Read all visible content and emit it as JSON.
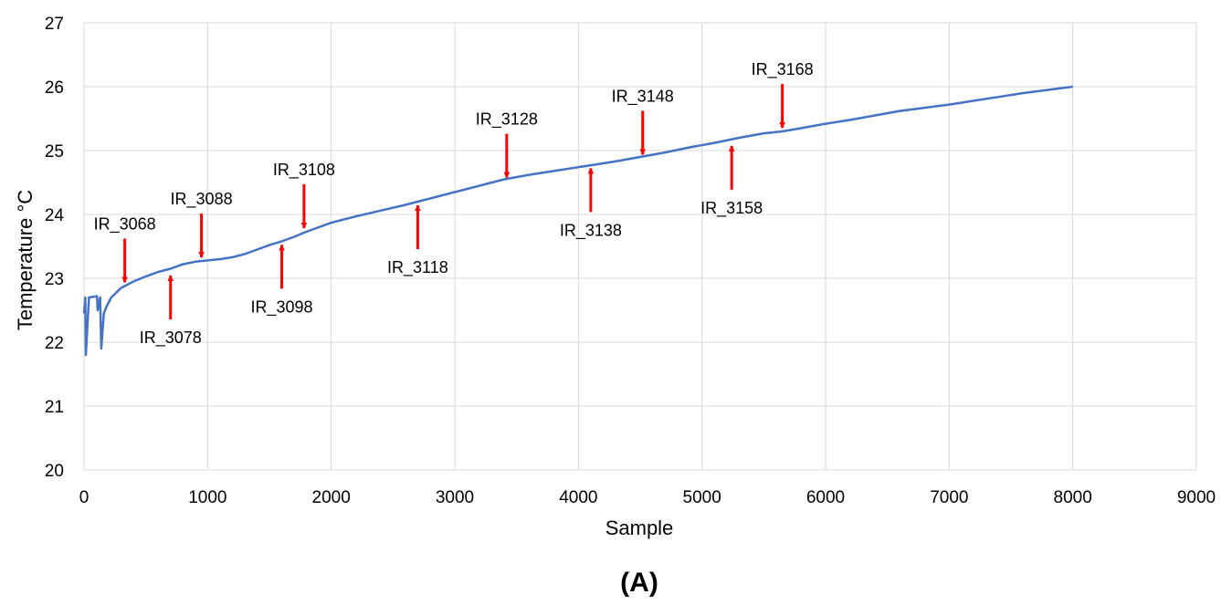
{
  "chart_data": {
    "type": "line",
    "title": "",
    "xlabel": "Sample",
    "ylabel": "Temperature °C",
    "panel_label": "(A)",
    "xlim": [
      0,
      9000
    ],
    "ylim": [
      20,
      27
    ],
    "xticks": [
      0,
      1000,
      2000,
      3000,
      4000,
      5000,
      6000,
      7000,
      8000,
      9000
    ],
    "yticks": [
      20,
      21,
      22,
      23,
      24,
      25,
      26,
      27
    ],
    "grid": true,
    "line_color": "#4472c4",
    "arrow_color": "#ff0000",
    "series": [
      {
        "x": [
          0,
          10,
          15,
          40,
          105,
          110,
          120,
          130,
          140,
          160,
          180,
          220,
          300,
          400,
          500,
          600,
          700,
          800,
          900,
          1000,
          1100,
          1200,
          1300,
          1400,
          1500,
          1600,
          1700,
          1800,
          1900,
          2000,
          2200,
          2400,
          2600,
          2700,
          2800,
          3000,
          3200,
          3400,
          3600,
          3800,
          4000,
          4100,
          4300,
          4500,
          4700,
          4900,
          5100,
          5300,
          5500,
          5650,
          5800,
          6000,
          6200,
          6400,
          6600,
          6800,
          7000,
          7200,
          7400,
          7600,
          7800,
          8000
        ],
        "y": [
          22.45,
          22.7,
          21.8,
          22.7,
          22.72,
          22.5,
          22.6,
          22.7,
          21.9,
          22.45,
          22.55,
          22.7,
          22.85,
          22.95,
          23.03,
          23.1,
          23.15,
          23.22,
          23.26,
          23.28,
          23.3,
          23.33,
          23.38,
          23.45,
          23.52,
          23.58,
          23.65,
          23.73,
          23.8,
          23.87,
          23.97,
          24.06,
          24.15,
          24.2,
          24.25,
          24.35,
          24.45,
          24.55,
          24.62,
          24.68,
          24.74,
          24.77,
          24.83,
          24.9,
          24.97,
          25.05,
          25.12,
          25.2,
          25.27,
          25.3,
          25.35,
          25.42,
          25.48,
          25.55,
          25.62,
          25.67,
          25.72,
          25.78,
          25.84,
          25.9,
          25.95,
          26.0
        ]
      }
    ],
    "annotations": [
      {
        "label": "IR_3068",
        "x": 330,
        "y": 22.88,
        "direction": "down"
      },
      {
        "label": "IR_3078",
        "x": 700,
        "y": 23.1,
        "direction": "up"
      },
      {
        "label": "IR_3088",
        "x": 950,
        "y": 23.27,
        "direction": "down"
      },
      {
        "label": "IR_3098",
        "x": 1600,
        "y": 23.58,
        "direction": "up"
      },
      {
        "label": "IR_3108",
        "x": 1780,
        "y": 23.73,
        "direction": "down"
      },
      {
        "label": "IR_3118",
        "x": 2700,
        "y": 24.2,
        "direction": "up"
      },
      {
        "label": "IR_3128",
        "x": 3420,
        "y": 24.52,
        "direction": "down"
      },
      {
        "label": "IR_3138",
        "x": 4100,
        "y": 24.78,
        "direction": "up"
      },
      {
        "label": "IR_3148",
        "x": 4520,
        "y": 24.88,
        "direction": "down"
      },
      {
        "label": "IR_3158",
        "x": 5240,
        "y": 25.13,
        "direction": "up"
      },
      {
        "label": "IR_3168",
        "x": 5650,
        "y": 25.3,
        "direction": "down"
      }
    ]
  }
}
